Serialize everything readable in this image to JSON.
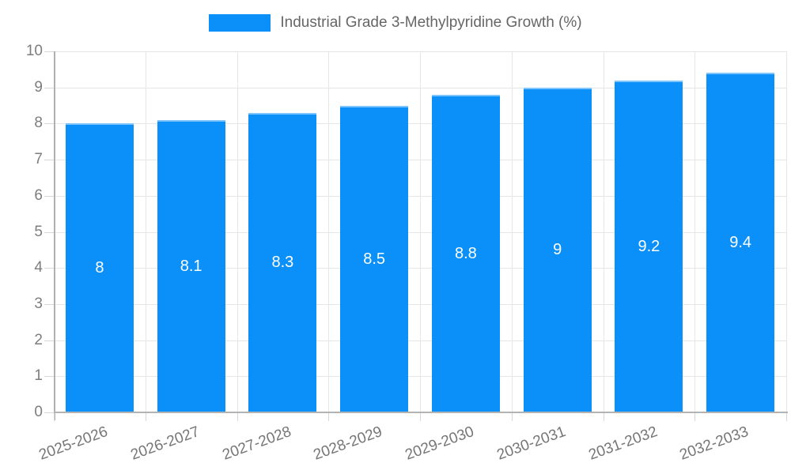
{
  "legend": {
    "series_label": "Industrial Grade 3-Methylpyridine Growth (%)"
  },
  "colors": {
    "bar": "#0a90f8",
    "bar_border": "#7fc4fb",
    "grid": "#e6e6e6",
    "axis": "#b3b3b3",
    "tick_text": "#7d7d7d",
    "legend_text": "#666666",
    "bar_label_text": "#ffffff",
    "background": "#ffffff"
  },
  "chart_data": {
    "type": "bar",
    "title": "Industrial Grade 3-Methylpyridine Growth (%)",
    "categories": [
      "2025-2026",
      "2026-2027",
      "2027-2028",
      "2028-2029",
      "2029-2030",
      "2030-2031",
      "2031-2032",
      "2032-2033"
    ],
    "values": [
      8,
      8.1,
      8.3,
      8.5,
      8.8,
      9,
      9.2,
      9.4
    ],
    "bar_labels": [
      "8",
      "8.1",
      "8.3",
      "8.5",
      "8.8",
      "9",
      "9.2",
      "9.4"
    ],
    "xlabel": "",
    "ylabel": "",
    "ylim": [
      0,
      10
    ],
    "yticks": [
      0,
      1,
      2,
      3,
      4,
      5,
      6,
      7,
      8,
      9,
      10
    ],
    "grid": true,
    "legend_position": "top",
    "bar_label_position": "center",
    "x_label_rotation_deg": -20
  }
}
